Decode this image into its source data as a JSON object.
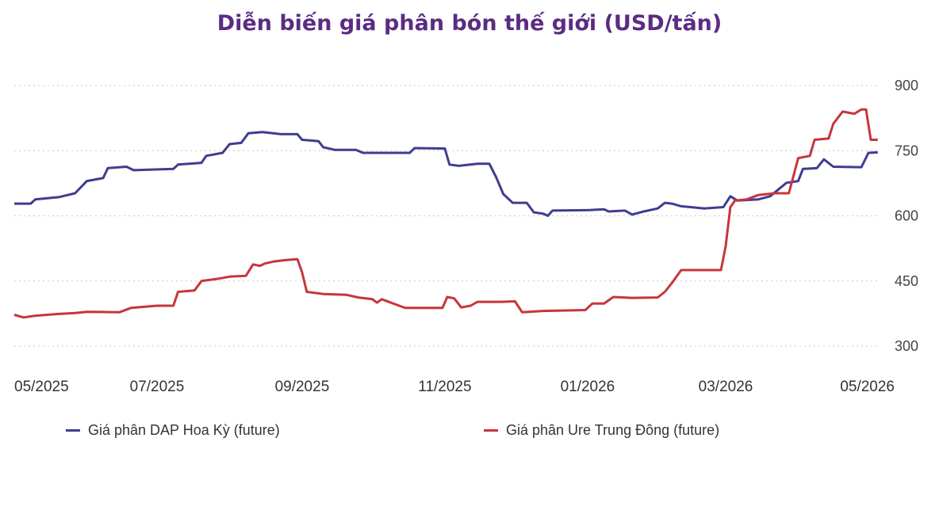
{
  "chart_data": {
    "type": "line",
    "title": "Diễn biến giá phân bón thế giới (USD/tấn)",
    "title_color": "#5B2C83",
    "y_ticks": [
      900,
      750,
      600,
      450,
      300
    ],
    "ylim": [
      290,
      900
    ],
    "grid": "horizontal dotted",
    "y_axis_position": "right",
    "x_tick_labels": [
      "05/2025",
      "07/2025",
      "09/2025",
      "11/2025",
      "01/2026",
      "03/2026",
      "05/2026"
    ],
    "x_ticks": [
      "2025-05-01",
      "2025-07-01",
      "2025-09-01",
      "2025-11-01",
      "2026-01-01",
      "2026-03-01",
      "2026-05-01"
    ],
    "xlim": [
      "2025-05-01",
      "2026-05-01"
    ],
    "legend_position": "bottom",
    "series": [
      {
        "name": "Giá phân DAP Hoa Kỳ (future)",
        "color": "#3F3D8F",
        "points": [
          [
            "2025-05-01",
            628
          ],
          [
            "2025-05-08",
            628
          ],
          [
            "2025-05-10",
            638
          ],
          [
            "2025-05-20",
            643
          ],
          [
            "2025-05-27",
            652
          ],
          [
            "2025-06-01",
            680
          ],
          [
            "2025-06-08",
            687
          ],
          [
            "2025-06-10",
            710
          ],
          [
            "2025-06-18",
            713
          ],
          [
            "2025-06-21",
            705
          ],
          [
            "2025-07-08",
            708
          ],
          [
            "2025-07-10",
            718
          ],
          [
            "2025-07-20",
            722
          ],
          [
            "2025-07-22",
            738
          ],
          [
            "2025-07-29",
            745
          ],
          [
            "2025-08-01",
            765
          ],
          [
            "2025-08-06",
            768
          ],
          [
            "2025-08-09",
            790
          ],
          [
            "2025-08-15",
            793
          ],
          [
            "2025-08-23",
            788
          ],
          [
            "2025-08-30",
            788
          ],
          [
            "2025-09-01",
            775
          ],
          [
            "2025-09-08",
            772
          ],
          [
            "2025-09-10",
            758
          ],
          [
            "2025-09-15",
            752
          ],
          [
            "2025-09-24",
            752
          ],
          [
            "2025-09-27",
            745
          ],
          [
            "2025-10-17",
            745
          ],
          [
            "2025-10-19",
            756
          ],
          [
            "2025-10-31",
            755
          ],
          [
            "2025-11-01",
            755
          ],
          [
            "2025-11-03",
            718
          ],
          [
            "2025-11-07",
            715
          ],
          [
            "2025-11-15",
            720
          ],
          [
            "2025-11-20",
            720
          ],
          [
            "2025-11-23",
            688
          ],
          [
            "2025-11-26",
            650
          ],
          [
            "2025-11-30",
            630
          ],
          [
            "2025-12-06",
            630
          ],
          [
            "2025-12-09",
            608
          ],
          [
            "2025-12-13",
            605
          ],
          [
            "2025-12-15",
            600
          ],
          [
            "2025-12-17",
            612
          ],
          [
            "2025-12-31",
            613
          ],
          [
            "2026-01-01",
            613
          ],
          [
            "2026-01-08",
            615
          ],
          [
            "2026-01-10",
            610
          ],
          [
            "2026-01-17",
            612
          ],
          [
            "2026-01-20",
            603
          ],
          [
            "2026-01-25",
            610
          ],
          [
            "2026-01-31",
            617
          ],
          [
            "2026-02-03",
            630
          ],
          [
            "2026-02-06",
            628
          ],
          [
            "2026-02-10",
            622
          ],
          [
            "2026-02-20",
            617
          ],
          [
            "2026-02-28",
            620
          ],
          [
            "2026-03-03",
            645
          ],
          [
            "2026-03-06",
            635
          ],
          [
            "2026-03-15",
            638
          ],
          [
            "2026-03-20",
            645
          ],
          [
            "2026-03-27",
            676
          ],
          [
            "2026-04-01",
            680
          ],
          [
            "2026-04-03",
            708
          ],
          [
            "2026-04-09",
            710
          ],
          [
            "2026-04-12",
            730
          ],
          [
            "2026-04-16",
            713
          ],
          [
            "2026-04-28",
            712
          ],
          [
            "2026-05-01",
            745
          ],
          [
            "2026-05-05",
            746
          ]
        ]
      },
      {
        "name": "Giá phân Ure Trung Đông (future)",
        "color": "#C6353D",
        "points": [
          [
            "2025-05-01",
            372
          ],
          [
            "2025-05-05",
            366
          ],
          [
            "2025-05-10",
            370
          ],
          [
            "2025-05-20",
            374
          ],
          [
            "2025-05-27",
            376
          ],
          [
            "2025-06-01",
            379
          ],
          [
            "2025-06-15",
            378
          ],
          [
            "2025-06-20",
            388
          ],
          [
            "2025-07-01",
            393
          ],
          [
            "2025-07-08",
            393
          ],
          [
            "2025-07-10",
            425
          ],
          [
            "2025-07-17",
            428
          ],
          [
            "2025-07-20",
            450
          ],
          [
            "2025-07-27",
            455
          ],
          [
            "2025-08-01",
            460
          ],
          [
            "2025-08-08",
            462
          ],
          [
            "2025-08-11",
            488
          ],
          [
            "2025-08-14",
            485
          ],
          [
            "2025-08-16",
            490
          ],
          [
            "2025-08-20",
            495
          ],
          [
            "2025-08-25",
            498
          ],
          [
            "2025-08-30",
            500
          ],
          [
            "2025-09-01",
            470
          ],
          [
            "2025-09-03",
            425
          ],
          [
            "2025-09-10",
            420
          ],
          [
            "2025-09-20",
            418
          ],
          [
            "2025-09-25",
            412
          ],
          [
            "2025-10-01",
            408
          ],
          [
            "2025-10-03",
            400
          ],
          [
            "2025-10-05",
            408
          ],
          [
            "2025-10-10",
            398
          ],
          [
            "2025-10-15",
            388
          ],
          [
            "2025-10-31",
            388
          ],
          [
            "2025-11-02",
            413
          ],
          [
            "2025-11-05",
            410
          ],
          [
            "2025-11-08",
            389
          ],
          [
            "2025-11-12",
            393
          ],
          [
            "2025-11-15",
            402
          ],
          [
            "2025-11-25",
            402
          ],
          [
            "2025-12-01",
            403
          ],
          [
            "2025-12-04",
            378
          ],
          [
            "2025-12-13",
            381
          ],
          [
            "2025-12-31",
            383
          ],
          [
            "2026-01-03",
            398
          ],
          [
            "2026-01-08",
            398
          ],
          [
            "2026-01-12",
            413
          ],
          [
            "2026-01-20",
            411
          ],
          [
            "2026-01-31",
            412
          ],
          [
            "2026-02-03",
            425
          ],
          [
            "2026-02-06",
            445
          ],
          [
            "2026-02-10",
            475
          ],
          [
            "2026-02-20",
            475
          ],
          [
            "2026-02-27",
            475
          ],
          [
            "2026-03-01",
            530
          ],
          [
            "2026-03-03",
            620
          ],
          [
            "2026-03-05",
            635
          ],
          [
            "2026-03-10",
            638
          ],
          [
            "2026-03-15",
            648
          ],
          [
            "2026-03-22",
            652
          ],
          [
            "2026-03-28",
            652
          ],
          [
            "2026-04-01",
            733
          ],
          [
            "2026-04-06",
            738
          ],
          [
            "2026-04-08",
            775
          ],
          [
            "2026-04-14",
            778
          ],
          [
            "2026-04-16",
            812
          ],
          [
            "2026-04-20",
            840
          ],
          [
            "2026-04-25",
            835
          ],
          [
            "2026-04-28",
            845
          ],
          [
            "2026-04-30",
            845
          ],
          [
            "2026-05-02",
            775
          ],
          [
            "2026-05-05",
            775
          ]
        ]
      }
    ]
  }
}
